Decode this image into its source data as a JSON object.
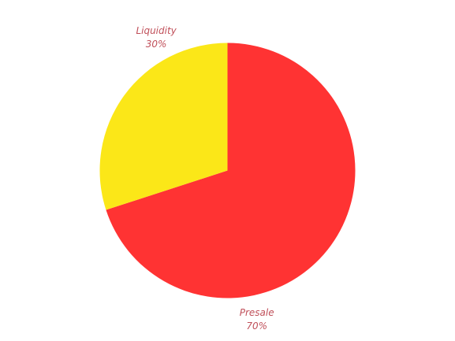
{
  "chart_data": {
    "type": "pie",
    "slices": [
      {
        "label": "Presale",
        "value": 70,
        "percent_label": "70%",
        "color": "#ff3333"
      },
      {
        "label": "Liquidity",
        "value": 30,
        "percent_label": "30%",
        "color": "#fbe718"
      }
    ],
    "label_color": "#c0505a",
    "start_angle": "12 o'clock, clockwise"
  }
}
